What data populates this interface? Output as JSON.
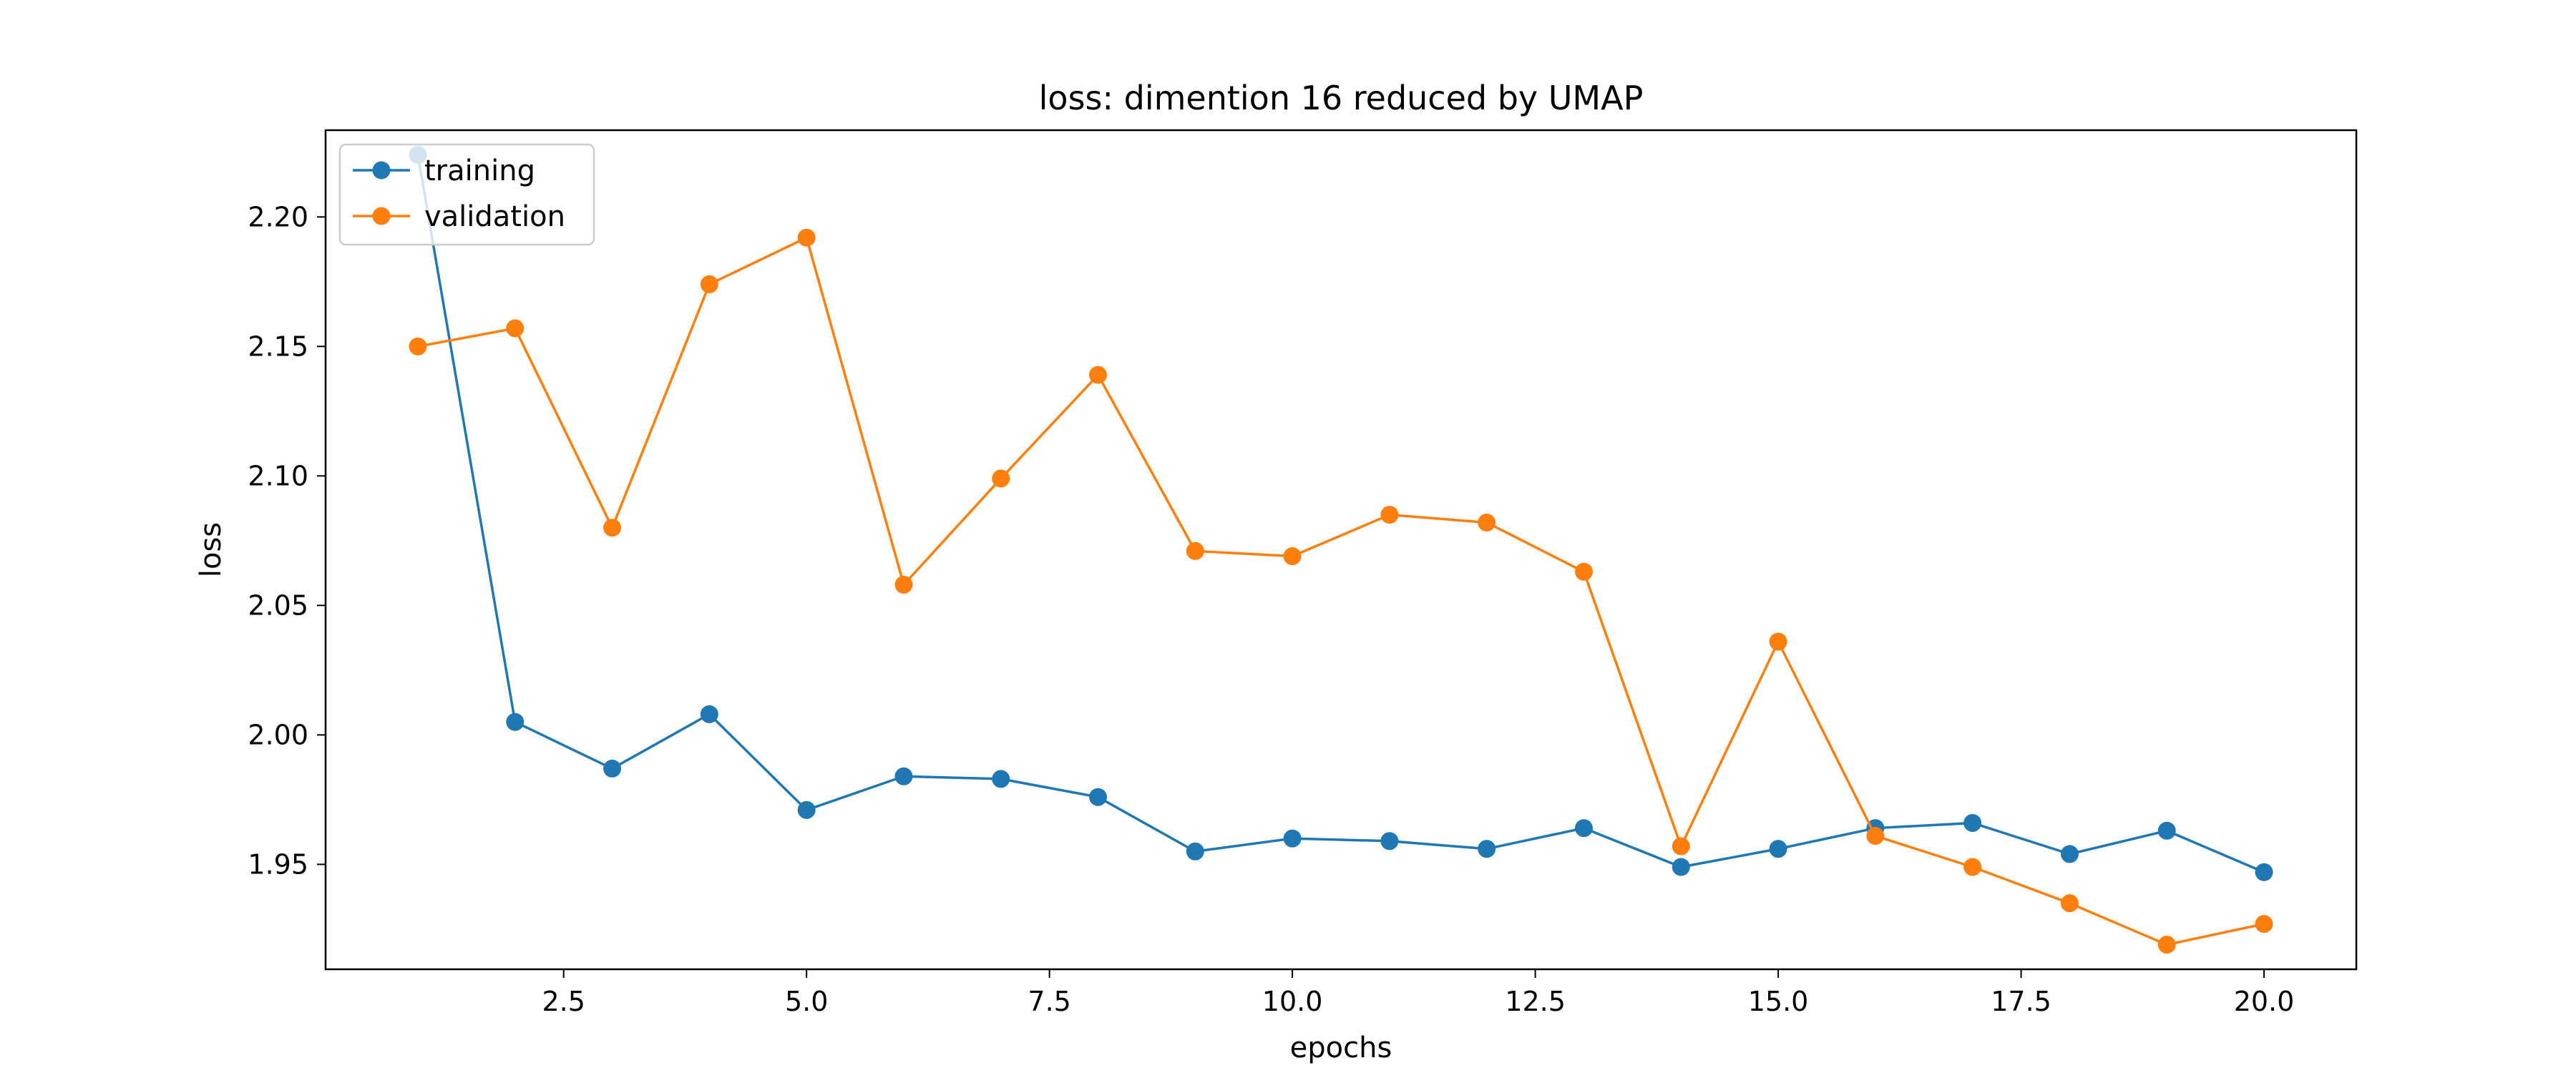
{
  "chart_data": {
    "type": "line",
    "title": "loss: dimention 16 reduced by UMAP",
    "xlabel": "epochs",
    "ylabel": "loss",
    "x": [
      1,
      2,
      3,
      4,
      5,
      6,
      7,
      8,
      9,
      10,
      11,
      12,
      13,
      14,
      15,
      16,
      17,
      18,
      19,
      20
    ],
    "xlim": [
      0.05,
      20.95
    ],
    "ylim": [
      1.9095,
      2.2335
    ],
    "xticks": [
      2.5,
      5.0,
      7.5,
      10.0,
      12.5,
      15.0,
      17.5,
      20.0
    ],
    "xtick_labels": [
      "2.5",
      "5.0",
      "7.5",
      "10.0",
      "12.5",
      "15.0",
      "17.5",
      "20.0"
    ],
    "yticks": [
      1.95,
      2.0,
      2.05,
      2.1,
      2.15,
      2.2
    ],
    "ytick_labels": [
      "1.95",
      "2.00",
      "2.05",
      "2.10",
      "2.15",
      "2.20"
    ],
    "grid": false,
    "legend_position": "upper-left",
    "series": [
      {
        "name": "training",
        "color": "#1f77b4",
        "marker": "circle",
        "values": [
          2.224,
          2.005,
          1.987,
          2.008,
          1.971,
          1.984,
          1.983,
          1.976,
          1.955,
          1.96,
          1.959,
          1.956,
          1.964,
          1.949,
          1.956,
          1.964,
          1.966,
          1.954,
          1.963,
          1.947
        ]
      },
      {
        "name": "validation",
        "color": "#ff7f0e",
        "marker": "circle",
        "values": [
          2.15,
          2.157,
          2.08,
          2.174,
          2.192,
          2.058,
          2.099,
          2.139,
          2.071,
          2.069,
          2.085,
          2.082,
          2.063,
          1.957,
          2.036,
          1.961,
          1.949,
          1.935,
          1.919,
          1.927
        ]
      }
    ]
  }
}
